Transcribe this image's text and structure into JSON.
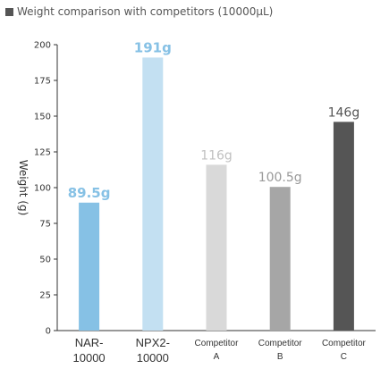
{
  "chart_data": {
    "type": "bar",
    "title": "Weight comparison with competitors (10000μL)",
    "ylabel": "Weight (g)",
    "xlabel": "",
    "ylim": [
      0,
      200
    ],
    "yticks": [
      0,
      25,
      50,
      75,
      100,
      125,
      150,
      175,
      200
    ],
    "grid": false,
    "categories": [
      {
        "line1": "NAR-",
        "line2": "10000",
        "style": "large"
      },
      {
        "line1": "NPX2-",
        "line2": "10000",
        "style": "large"
      },
      {
        "line1": "Competitor",
        "line2": "A",
        "style": "small"
      },
      {
        "line1": "Competitor",
        "line2": "B",
        "style": "small"
      },
      {
        "line1": "Competitor",
        "line2": "C",
        "style": "small"
      }
    ],
    "values": [
      89.5,
      191,
      116,
      100.5,
      146
    ],
    "value_labels": [
      "89.5g",
      "191g",
      "116g",
      "100.5g",
      "146g"
    ],
    "bar_colors": [
      "#86c1e5",
      "#c3e0f2",
      "#d9d9d9",
      "#a6a6a6",
      "#555555"
    ],
    "value_label_colors": [
      "#86c1e5",
      "#86c1e5",
      "#c0c0c0",
      "#999999",
      "#555555"
    ],
    "value_label_bold": [
      true,
      true,
      false,
      false,
      false
    ]
  }
}
